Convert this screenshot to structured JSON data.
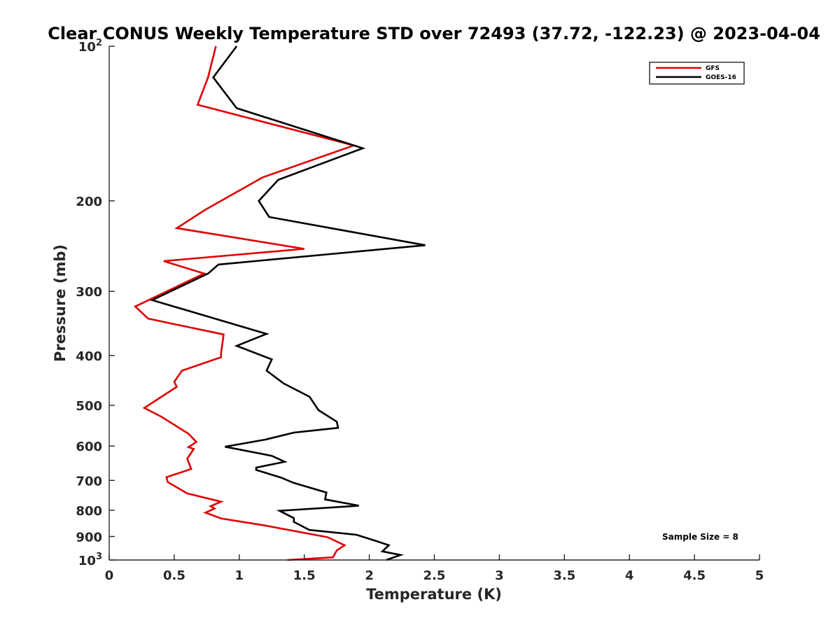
{
  "chart_data": {
    "type": "line",
    "title": "Clear CONUS Weekly Temperature STD over 72493 (37.72, -122.23) @ 2023-04-04",
    "xlabel": "Temperature (K)",
    "ylabel": "Pressure (mb)",
    "xlim": [
      0,
      5
    ],
    "ylim": [
      100,
      1000
    ],
    "y_scale": "log",
    "y_reversed": true,
    "x_ticks": [
      "0",
      "0.5",
      "1",
      "1.5",
      "2",
      "2.5",
      "3",
      "3.5",
      "4",
      "4.5",
      "5"
    ],
    "y_ticks": [
      {
        "value": 100,
        "base": "10",
        "exp": "2"
      },
      {
        "value": 200,
        "label": "200"
      },
      {
        "value": 300,
        "label": "300"
      },
      {
        "value": 400,
        "label": "400"
      },
      {
        "value": 500,
        "label": "500"
      },
      {
        "value": 600,
        "label": "600"
      },
      {
        "value": 700,
        "label": "700"
      },
      {
        "value": 800,
        "label": "800"
      },
      {
        "value": 900,
        "label": "900"
      },
      {
        "value": 1000,
        "base": "10",
        "exp": "3"
      }
    ],
    "grid": false,
    "legend_position": "top-right",
    "annotation": "Sample Size = 8",
    "series": [
      {
        "name": "GFS",
        "color": "#e00000",
        "x": [
          0.82,
          0.76,
          0.68,
          1.88,
          1.18,
          0.74,
          0.52,
          1.5,
          0.42,
          0.73,
          0.42,
          0.2,
          0.3,
          0.88,
          0.86,
          0.86,
          0.56,
          0.5,
          0.52,
          0.27,
          0.4,
          0.61,
          0.67,
          0.61,
          0.65,
          0.6,
          0.63,
          0.44,
          0.45,
          0.6,
          0.86,
          0.78,
          0.81,
          0.74,
          0.86,
          1.2,
          1.68,
          1.81,
          1.75,
          1.72,
          1.37
        ],
        "y": [
          100,
          115,
          130,
          156,
          180,
          208,
          226,
          248,
          262,
          277,
          302,
          321,
          339,
          364,
          396,
          403,
          428,
          450,
          460,
          506,
          526,
          568,
          589,
          603,
          608,
          635,
          665,
          690,
          705,
          742,
          770,
          786,
          794,
          809,
          830,
          857,
          903,
          936,
          958,
          988,
          1000
        ]
      },
      {
        "name": "GOES-16",
        "color": "#000000",
        "x": [
          0.98,
          0.8,
          0.98,
          1.95,
          1.3,
          1.15,
          1.23,
          2.43,
          0.84,
          0.76,
          0.33,
          1.21,
          0.98,
          1.25,
          1.21,
          1.34,
          1.54,
          1.61,
          1.75,
          1.76,
          1.42,
          1.2,
          0.89,
          1.25,
          1.35,
          1.13,
          1.13,
          1.32,
          1.42,
          1.67,
          1.66,
          1.92,
          1.31,
          1.42,
          1.42,
          1.54,
          1.9,
          2.05,
          2.15,
          2.1,
          2.24,
          2.13
        ],
        "y": [
          100,
          115,
          132,
          158,
          182,
          200,
          215,
          244,
          266,
          277,
          312,
          363,
          383,
          407,
          428,
          453,
          481,
          511,
          538,
          553,
          565,
          583,
          602,
          627,
          644,
          661,
          668,
          691,
          708,
          739,
          762,
          784,
          802,
          829,
          843,
          874,
          893,
          918,
          936,
          962,
          978,
          1000
        ]
      }
    ]
  }
}
